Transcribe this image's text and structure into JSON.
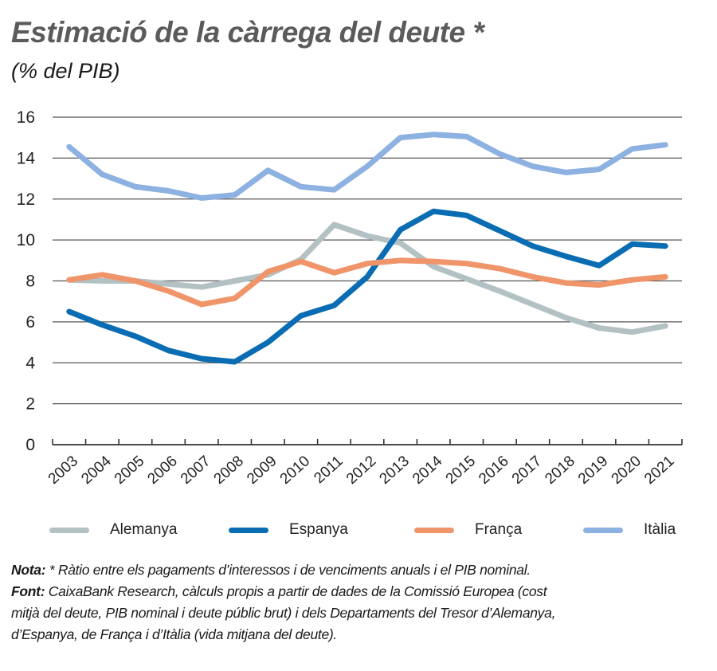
{
  "chart_data": {
    "type": "line",
    "title": "Estimació de la càrrega del deute *",
    "subtitle": "(% del PIB)",
    "xlabel": "",
    "ylabel": "",
    "ylim": [
      0,
      16
    ],
    "yticks": [
      "0",
      "2",
      "4",
      "6",
      "8",
      "10",
      "12",
      "14",
      "16"
    ],
    "ytick_values": [
      0,
      2,
      4,
      6,
      8,
      10,
      12,
      14,
      16
    ],
    "grid": true,
    "legend_position": "bottom",
    "categories": [
      "2003",
      "2004",
      "2005",
      "2006",
      "2007",
      "2008",
      "2009",
      "2010",
      "2011",
      "2012",
      "2013",
      "2014",
      "2015",
      "2016",
      "2017",
      "2018",
      "2019",
      "2020",
      "2021"
    ],
    "series": [
      {
        "name": "Alemanya",
        "color": "#b3c1c4",
        "values": [
          8.05,
          8.0,
          8.0,
          7.85,
          7.7,
          8.0,
          8.3,
          9.05,
          10.75,
          10.2,
          9.85,
          8.7,
          8.1,
          7.5,
          6.85,
          6.2,
          5.7,
          5.5,
          5.8
        ]
      },
      {
        "name": "Espanya",
        "color": "#0a6db3",
        "values": [
          6.5,
          5.85,
          5.3,
          4.6,
          4.2,
          4.05,
          5.0,
          6.3,
          6.8,
          8.2,
          10.5,
          11.4,
          11.2,
          10.45,
          9.7,
          9.2,
          8.75,
          9.8,
          9.7
        ]
      },
      {
        "name": "França",
        "color": "#f0956a",
        "values": [
          8.05,
          8.3,
          8.0,
          7.5,
          6.85,
          7.15,
          8.45,
          8.95,
          8.4,
          8.85,
          9.0,
          8.95,
          8.85,
          8.6,
          8.2,
          7.9,
          7.8,
          8.05,
          8.2
        ]
      },
      {
        "name": "Itàlia",
        "color": "#8db1e0",
        "values": [
          14.55,
          13.2,
          12.6,
          12.4,
          12.05,
          12.2,
          13.4,
          12.6,
          12.45,
          13.6,
          15.0,
          15.15,
          15.05,
          14.2,
          13.6,
          13.3,
          13.45,
          14.45,
          14.65
        ]
      }
    ]
  },
  "notes": {
    "nota_label": "Nota:",
    "nota_text": " * Ràtio entre els pagaments d’interessos i de venciments anuals i el PIB nominal.",
    "font_label": "Font:",
    "font_text_1": " CaixaBank Research, càlculs propis a partir de dades de la Comissió Europea (cost",
    "font_text_2": "mitjà del deute, PIB nominal i deute públic brut) i dels Departaments del Tresor d’Alemanya,",
    "font_text_3": "d’Espanya, de França i d’Itàlia (vida mitjana del deute)."
  },
  "colors": {
    "title": "#5b5b5b",
    "grid": "#555555",
    "text": "#222222"
  }
}
